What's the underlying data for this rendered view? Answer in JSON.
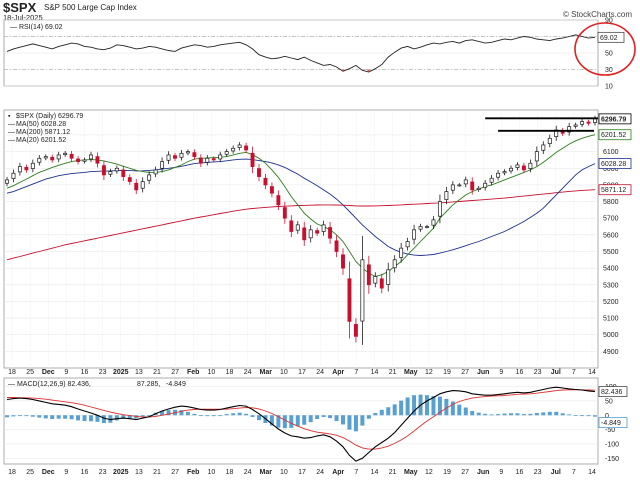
{
  "header": {
    "symbol": "$SPX",
    "name": "S&P 500 Large Cap Index",
    "date": "18-Jul-2025",
    "credit": "© StockCharts.com"
  },
  "colors": {
    "price_up": "#1a1a1a",
    "price_down": "#c8102e",
    "ma50": "#1f2f8f",
    "ma200": "#c8102e",
    "ma20": "#2e7d1e",
    "rsi": "#222222",
    "macd": "#000000",
    "signal": "#e03030",
    "hist": "#3a8fc7",
    "annotation_circle": "#e02020",
    "annotation_line": "#000000"
  },
  "chart_data": [
    {
      "type": "line",
      "panel": "rsi",
      "legend": "RSI(14) 69.02",
      "last_value_label": "69.02",
      "y_ticks": [
        "90",
        "70",
        "50",
        "30",
        "10"
      ],
      "ylim": [
        10,
        90
      ],
      "reference_lines": [
        70,
        30
      ],
      "values": [
        52,
        55,
        57,
        59,
        61,
        59,
        57,
        55,
        58,
        60,
        62,
        61,
        58,
        57,
        55,
        54,
        56,
        60,
        59,
        57,
        55,
        56,
        58,
        57,
        55,
        53,
        52,
        56,
        58,
        60,
        59,
        57,
        58,
        60,
        61,
        62,
        63,
        60,
        55,
        48,
        45,
        43,
        44,
        46,
        44,
        42,
        45,
        41,
        38,
        35,
        36,
        33,
        28,
        31,
        35,
        29,
        27,
        31,
        36,
        45,
        51,
        56,
        58,
        55,
        57,
        60,
        62,
        61,
        63,
        64,
        62,
        65,
        66,
        64,
        62,
        63,
        65,
        67,
        66,
        68,
        70,
        69,
        67,
        66,
        65,
        67,
        68,
        70,
        72,
        70,
        68,
        69.02
      ],
      "annotation": "red circle around last RSI value"
    },
    {
      "type": "candlestick",
      "panel": "price",
      "legend": [
        "$SPX (Daily) 6296.79",
        "MA(50) 6028.28",
        "MA(200) 5871.12",
        "MA(20) 6201.52"
      ],
      "last_value_labels": [
        "6296.79",
        "6201.52",
        "6028.28",
        "5871.12"
      ],
      "y_ticks": [
        "6200",
        "6100",
        "6000",
        "5900",
        "5800",
        "5700",
        "5600",
        "5500",
        "5400",
        "5300",
        "5200",
        "5100",
        "5000",
        "4900"
      ],
      "ylim": [
        4800,
        6350
      ],
      "x_ticks": [
        "18",
        "25",
        "Dec",
        "9",
        "16",
        "23",
        "2025",
        "13",
        "21",
        "27",
        "Feb",
        "10",
        "18",
        "24",
        "Mar",
        "10",
        "17",
        "24",
        "Apr",
        "7",
        "14",
        "21",
        "May",
        "12",
        "19",
        "27",
        "Jun",
        "9",
        "16",
        "23",
        "Jul",
        "7",
        "14"
      ],
      "close": [
        5930,
        5970,
        6010,
        5990,
        6030,
        6060,
        6070,
        6050,
        6080,
        6090,
        6060,
        6040,
        6050,
        6080,
        6030,
        5960,
        5980,
        6000,
        5950,
        5920,
        5870,
        5920,
        5960,
        5990,
        6040,
        6080,
        6060,
        6090,
        6100,
        6070,
        6030,
        6060,
        6050,
        6080,
        6100,
        6120,
        6140,
        6110,
        6010,
        5950,
        5900,
        5850,
        5780,
        5700,
        5620,
        5660,
        5570,
        5630,
        5610,
        5660,
        5580,
        5500,
        5400,
        5080,
        4990,
        5450,
        5300,
        5350,
        5280,
        5390,
        5450,
        5520,
        5560,
        5630,
        5650,
        5650,
        5690,
        5800,
        5860,
        5900,
        5900,
        5930,
        5870,
        5880,
        5910,
        5940,
        5970,
        5980,
        6000,
        6020,
        5990,
        6030,
        6100,
        6140,
        6180,
        6230,
        6210,
        6250,
        6260,
        6280,
        6270,
        6296.79
      ],
      "ma50": [
        5850,
        5860,
        5875,
        5890,
        5905,
        5920,
        5935,
        5945,
        5955,
        5962,
        5968,
        5972,
        5975,
        5980,
        5982,
        5983,
        5984,
        5986,
        5987,
        5986,
        5984,
        5985,
        5987,
        5990,
        5995,
        6000,
        6005,
        6012,
        6020,
        6028,
        6032,
        6035,
        6038,
        6040,
        6045,
        6050,
        6054,
        6055,
        6052,
        6046,
        6040,
        6032,
        6020,
        6005,
        5985,
        5965,
        5940,
        5918,
        5895,
        5870,
        5845,
        5815,
        5780,
        5740,
        5700,
        5660,
        5625,
        5590,
        5560,
        5530,
        5510,
        5495,
        5485,
        5478,
        5476,
        5478,
        5482,
        5490,
        5500,
        5510,
        5522,
        5535,
        5548,
        5560,
        5575,
        5590,
        5605,
        5620,
        5640,
        5660,
        5680,
        5705,
        5730,
        5760,
        5800,
        5840,
        5880,
        5920,
        5960,
        5990,
        6010,
        6028.28
      ],
      "ma200": [
        5450,
        5460,
        5470,
        5480,
        5490,
        5500,
        5510,
        5520,
        5530,
        5540,
        5548,
        5556,
        5564,
        5572,
        5580,
        5588,
        5596,
        5604,
        5612,
        5620,
        5628,
        5636,
        5644,
        5652,
        5660,
        5668,
        5676,
        5684,
        5692,
        5700,
        5707,
        5714,
        5721,
        5728,
        5735,
        5742,
        5748,
        5754,
        5758,
        5762,
        5765,
        5768,
        5770,
        5772,
        5774,
        5776,
        5777,
        5778,
        5779,
        5780,
        5780,
        5779,
        5778,
        5776,
        5774,
        5773,
        5773,
        5774,
        5775,
        5776,
        5778,
        5780,
        5782,
        5784,
        5786,
        5788,
        5790,
        5792,
        5795,
        5798,
        5800,
        5803,
        5806,
        5809,
        5812,
        5815,
        5818,
        5821,
        5825,
        5829,
        5833,
        5837,
        5841,
        5845,
        5849,
        5853,
        5857,
        5861,
        5864,
        5867,
        5869,
        5871.12
      ],
      "ma20": [
        5880,
        5895,
        5915,
        5935,
        5955,
        5975,
        5990,
        6005,
        6018,
        6030,
        6040,
        6047,
        6050,
        6052,
        6050,
        6044,
        6035,
        6025,
        6012,
        6000,
        5988,
        5980,
        5975,
        5975,
        5980,
        5990,
        6005,
        6020,
        6040,
        6055,
        6060,
        6062,
        6064,
        6066,
        6070,
        6080,
        6090,
        6095,
        6082,
        6060,
        6030,
        5990,
        5945,
        5890,
        5830,
        5780,
        5730,
        5695,
        5665,
        5650,
        5630,
        5600,
        5560,
        5500,
        5440,
        5400,
        5370,
        5350,
        5360,
        5380,
        5410,
        5440,
        5480,
        5520,
        5560,
        5600,
        5640,
        5700,
        5740,
        5780,
        5810,
        5840,
        5860,
        5875,
        5890,
        5900,
        5915,
        5930,
        5945,
        5960,
        5975,
        5990,
        6010,
        6035,
        6065,
        6095,
        6120,
        6145,
        6165,
        6180,
        6192,
        6201.52
      ],
      "annotations": [
        "horizontal resistance line near 6300",
        "horizontal line near 6225"
      ]
    },
    {
      "type": "line",
      "panel": "macd",
      "legend": [
        "MACD(12,26,9) 82.436,",
        "87.285,",
        "-4.849"
      ],
      "last_value_labels": [
        "82.436",
        "-4.849"
      ],
      "y_ticks": [
        "100",
        "50",
        "0",
        "-50",
        "-100",
        "-150"
      ],
      "ylim": [
        -170,
        130
      ],
      "x_ticks": [
        "18",
        "25",
        "Dec",
        "9",
        "16",
        "23",
        "2025",
        "13",
        "21",
        "27",
        "Feb",
        "10",
        "18",
        "24",
        "Mar",
        "10",
        "17",
        "24",
        "Apr",
        "7",
        "14",
        "21",
        "May",
        "12",
        "19",
        "27",
        "Jun",
        "9",
        "16",
        "23",
        "Jul",
        "7",
        "14"
      ],
      "macd": [
        55,
        58,
        60,
        58,
        55,
        50,
        45,
        40,
        38,
        35,
        30,
        22,
        15,
        8,
        0,
        -10,
        -15,
        -12,
        -10,
        -12,
        -15,
        -10,
        -5,
        5,
        15,
        22,
        28,
        32,
        30,
        25,
        20,
        18,
        18,
        20,
        25,
        30,
        34,
        32,
        20,
        5,
        -12,
        -30,
        -48,
        -62,
        -72,
        -75,
        -80,
        -78,
        -72,
        -68,
        -75,
        -90,
        -110,
        -140,
        -160,
        -150,
        -130,
        -110,
        -95,
        -80,
        -60,
        -35,
        -10,
        15,
        35,
        50,
        62,
        75,
        82,
        86,
        85,
        82,
        75,
        72,
        70,
        70,
        72,
        75,
        78,
        80,
        78,
        80,
        85,
        90,
        95,
        98,
        95,
        92,
        90,
        88,
        85,
        82.436
      ],
      "signal": [
        62,
        62,
        61,
        61,
        60,
        58,
        56,
        53,
        50,
        47,
        44,
        40,
        35,
        29,
        23,
        17,
        11,
        6,
        2,
        -1,
        -4,
        -6,
        -6,
        -4,
        0,
        4,
        9,
        14,
        18,
        20,
        21,
        21,
        21,
        21,
        21,
        23,
        25,
        27,
        26,
        22,
        15,
        6,
        -5,
        -17,
        -28,
        -38,
        -47,
        -54,
        -59,
        -62,
        -65,
        -70,
        -78,
        -90,
        -104,
        -114,
        -118,
        -118,
        -114,
        -108,
        -98,
        -86,
        -72,
        -55,
        -37,
        -20,
        -5,
        10,
        25,
        38,
        48,
        55,
        60,
        63,
        65,
        67,
        68,
        69,
        71,
        73,
        74,
        75,
        77,
        80,
        83,
        86,
        88,
        89,
        89,
        89,
        88,
        87.285
      ],
      "histogram": [
        -7,
        -4,
        -1,
        -3,
        -5,
        -8,
        -11,
        -13,
        -12,
        -12,
        -14,
        -18,
        -20,
        -21,
        -23,
        -27,
        -26,
        -18,
        -12,
        -11,
        -11,
        -4,
        1,
        9,
        15,
        18,
        19,
        18,
        12,
        5,
        -1,
        -3,
        -3,
        -1,
        4,
        7,
        9,
        5,
        -6,
        -17,
        -27,
        -36,
        -43,
        -45,
        -44,
        -37,
        -33,
        -24,
        -13,
        -6,
        -10,
        -20,
        -32,
        -50,
        -56,
        -36,
        -12,
        8,
        19,
        28,
        38,
        51,
        62,
        70,
        72,
        70,
        67,
        65,
        57,
        48,
        37,
        27,
        15,
        9,
        5,
        3,
        4,
        6,
        7,
        7,
        4,
        5,
        8,
        10,
        12,
        12,
        7,
        3,
        1,
        -1,
        -3,
        -4.849
      ]
    }
  ]
}
